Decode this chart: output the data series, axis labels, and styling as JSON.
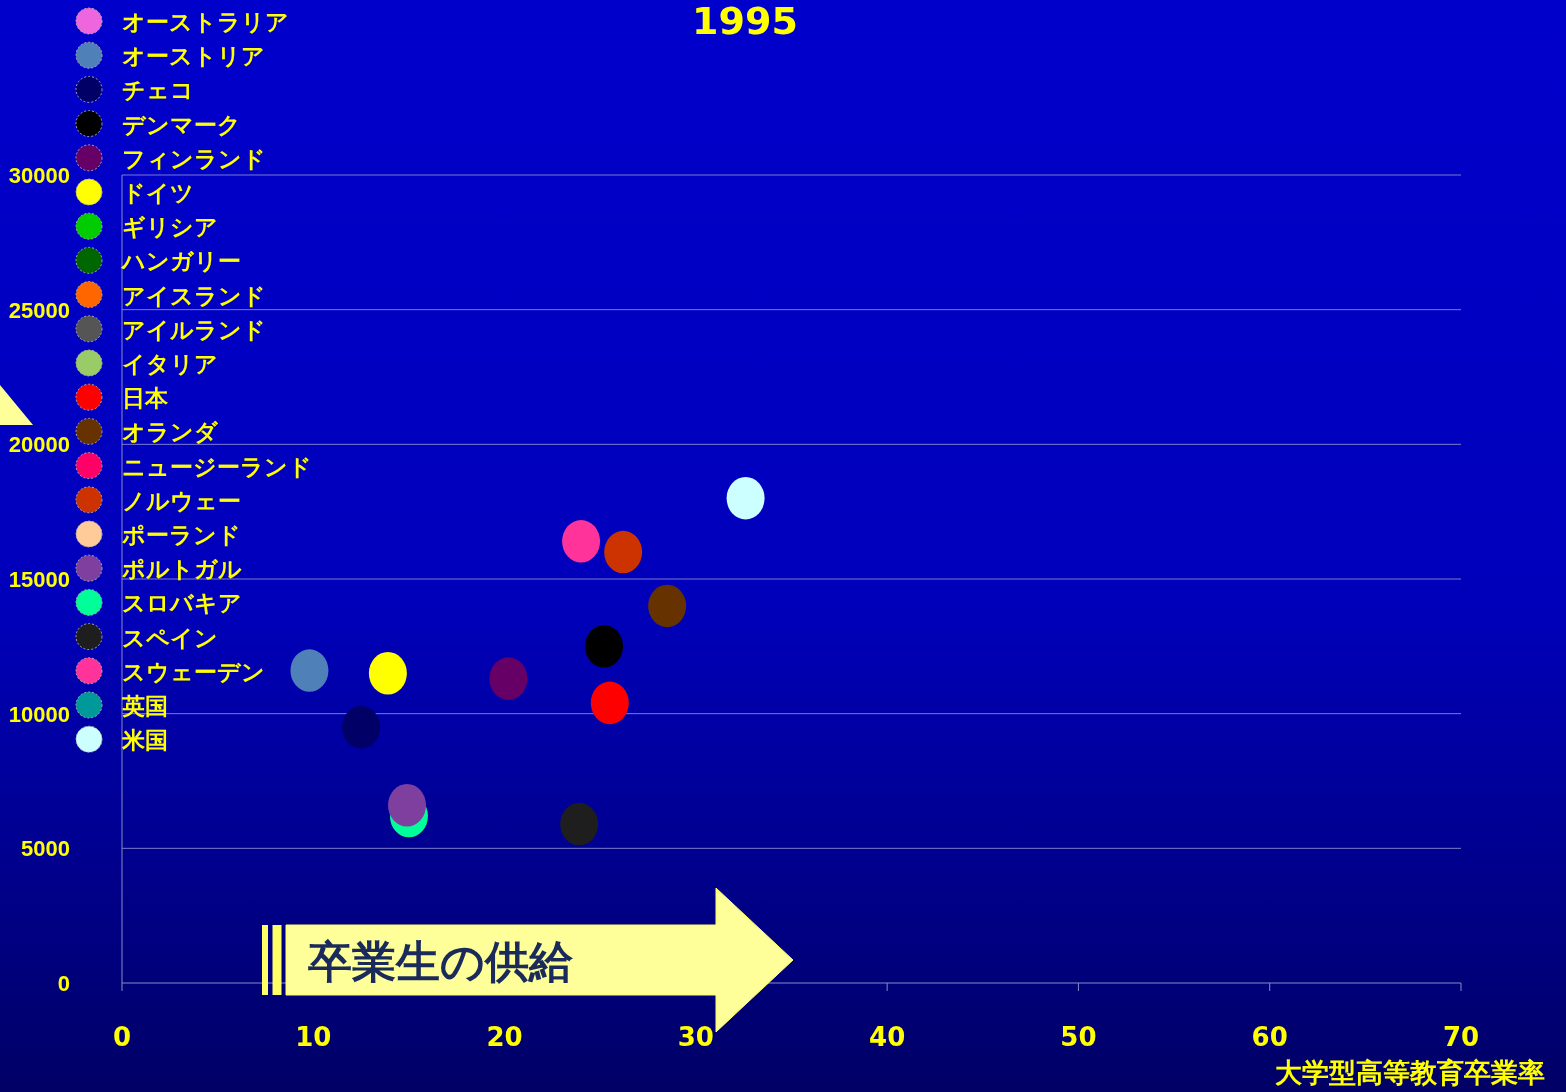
{
  "chart_data": {
    "type": "scatter",
    "title": "1995",
    "xlabel": "大学型高等教育卒業率",
    "xlim": [
      0,
      70
    ],
    "xticks": [
      0,
      10,
      20,
      30,
      40,
      50,
      60,
      70
    ],
    "ylim": [
      0,
      30000
    ],
    "yticks": [
      0,
      5000,
      10000,
      15000,
      20000,
      25000,
      30000
    ],
    "grid": "y",
    "legend": "top left",
    "marker": "circle",
    "annotations": [
      "卒業生の供給"
    ],
    "series": [
      {
        "name": "オーストラリア",
        "color": "#ee66dd",
        "x": [
          null
        ],
        "values": [
          null
        ]
      },
      {
        "name": "オーストリア",
        "color": "#5080b8",
        "x": [
          9.8
        ],
        "values": [
          11600
        ]
      },
      {
        "name": "チェコ",
        "color": "#000066",
        "x": [
          12.5
        ],
        "values": [
          9500
        ]
      },
      {
        "name": "デンマーク",
        "color": "#000000",
        "x": [
          25.2
        ],
        "values": [
          12500
        ]
      },
      {
        "name": "フィンランド",
        "color": "#660066",
        "x": [
          20.2
        ],
        "values": [
          11300
        ]
      },
      {
        "name": "ドイツ",
        "color": "#ffff00",
        "x": [
          13.9
        ],
        "values": [
          11500
        ]
      },
      {
        "name": "ギリシア",
        "color": "#00cc00",
        "x": [
          null
        ],
        "values": [
          null
        ]
      },
      {
        "name": "ハンガリー",
        "color": "#006600",
        "x": [
          null
        ],
        "values": [
          null
        ]
      },
      {
        "name": "アイスランド",
        "color": "#ff6600",
        "x": [
          null
        ],
        "values": [
          null
        ]
      },
      {
        "name": "アイルランド",
        "color": "#555555",
        "x": [
          null
        ],
        "values": [
          null
        ]
      },
      {
        "name": "イタリア",
        "color": "#99cc66",
        "x": [
          null
        ],
        "values": [
          null
        ]
      },
      {
        "name": "日本",
        "color": "#ff0000",
        "x": [
          25.5
        ],
        "values": [
          10400
        ]
      },
      {
        "name": "オランダ",
        "color": "#663300",
        "x": [
          28.5
        ],
        "values": [
          14000
        ]
      },
      {
        "name": "ニュージーランド",
        "color": "#ff0066",
        "x": [
          null
        ],
        "values": [
          null
        ]
      },
      {
        "name": "ノルウェー",
        "color": "#cc3300",
        "x": [
          26.2
        ],
        "values": [
          16000
        ]
      },
      {
        "name": "ポーランド",
        "color": "#ffcc99",
        "x": [
          null
        ],
        "values": [
          null
        ]
      },
      {
        "name": "ポルトガル",
        "color": "#7f3f9f",
        "x": [
          14.9
        ],
        "values": [
          6600
        ]
      },
      {
        "name": "スロバキア",
        "color": "#00ff99",
        "x": [
          15.0
        ],
        "values": [
          6200
        ]
      },
      {
        "name": "スペイン",
        "color": "#1e1e1e",
        "x": [
          23.9
        ],
        "values": [
          5900
        ]
      },
      {
        "name": "スウェーデン",
        "color": "#ff3399",
        "x": [
          24.0
        ],
        "values": [
          16400
        ]
      },
      {
        "name": "英国",
        "color": "#009999",
        "x": [
          null
        ],
        "values": [
          null
        ]
      },
      {
        "name": "米国",
        "color": "#ccffff",
        "x": [
          32.6
        ],
        "values": [
          18000
        ]
      }
    ]
  }
}
